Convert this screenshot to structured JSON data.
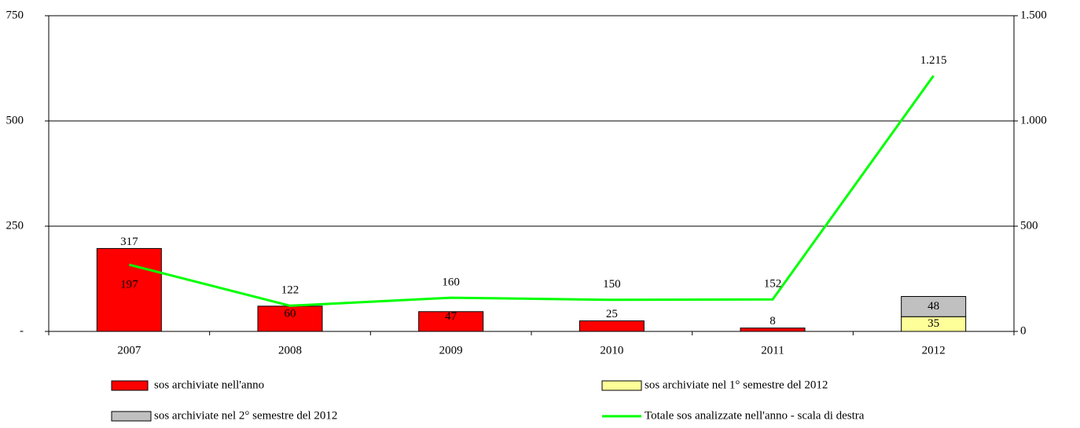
{
  "chart_data": {
    "type": "bar",
    "categories": [
      "2007",
      "2008",
      "2009",
      "2010",
      "2011",
      "2012"
    ],
    "series": [
      {
        "name": "sos archiviate nell'anno",
        "color": "#ff0000",
        "values": [
          197,
          60,
          47,
          25,
          8,
          null
        ]
      },
      {
        "name": "sos archiviate nel 1° semestre del 2012",
        "color": "#ffff99",
        "values": [
          null,
          null,
          null,
          null,
          null,
          35
        ],
        "stack": true
      },
      {
        "name": "sos archiviate nel 2° semestre del 2012",
        "color": "#c0c0c0",
        "values": [
          null,
          null,
          null,
          null,
          null,
          48
        ],
        "stack": true
      },
      {
        "name": "Totale sos analizzate nell'anno - scala di destra",
        "color": "#00ff00",
        "type": "line",
        "axis": "y2",
        "values": [
          317,
          122,
          160,
          150,
          152,
          1215
        ],
        "value_labels": [
          "317",
          "122",
          "160",
          "150",
          "152",
          "1.215"
        ]
      }
    ],
    "ylim": [
      0,
      750
    ],
    "yticks": [
      {
        "value": 0,
        "label": "-"
      },
      250,
      500,
      750
    ],
    "y2lim": [
      0,
      1500
    ],
    "y2ticks": [
      0,
      500,
      {
        "value": 1000,
        "label": "1.000"
      },
      {
        "value": 1500,
        "label": "1.500"
      }
    ],
    "grid": true,
    "legend": "bottom"
  }
}
